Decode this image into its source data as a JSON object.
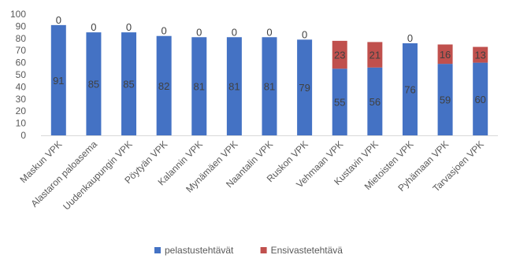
{
  "chart_data": {
    "type": "bar",
    "stacked": true,
    "categories": [
      "Maskun VPK",
      "Alastaron paloasema",
      "Uudenkaupungin VPK",
      "Pöytyän VPK",
      "Kalannin VPK",
      "Mynämäen VPK",
      "Naantalin VPK",
      "Ruskon VPK",
      "Vehmaan VPK",
      "Kustavin VPK",
      "Mietoisten VPK",
      "Pyhämaan VPK",
      "Tarvasjoen VPK"
    ],
    "series": [
      {
        "name": "pelastustehtävät",
        "color": "#4472C4",
        "values": [
          91,
          85,
          85,
          82,
          81,
          81,
          81,
          79,
          55,
          56,
          76,
          59,
          60
        ]
      },
      {
        "name": "Ensivastetehtävä",
        "color": "#C0504D",
        "values": [
          0,
          0,
          0,
          0,
          0,
          0,
          0,
          0,
          23,
          21,
          0,
          16,
          13
        ]
      }
    ],
    "ylim": [
      0,
      100
    ],
    "yticks": [
      "0",
      "10",
      "20",
      "30",
      "40",
      "50",
      "60",
      "70",
      "80",
      "90",
      "100"
    ],
    "title": "",
    "xlabel": "",
    "ylabel": "",
    "grid": false,
    "legend_position": "bottom"
  }
}
